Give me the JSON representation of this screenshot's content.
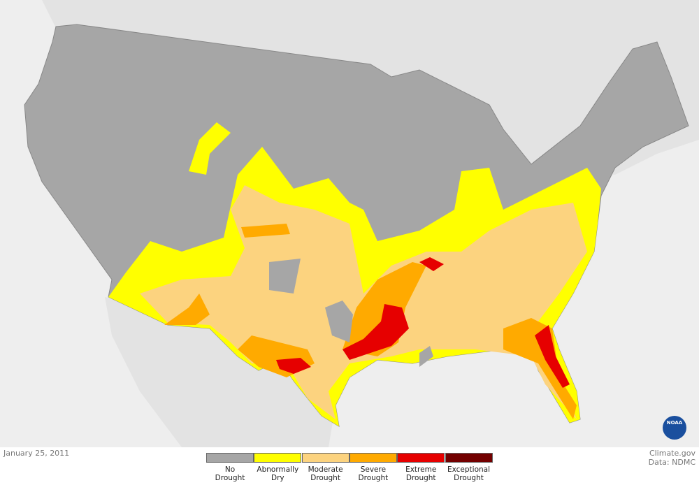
{
  "date": "January 25, 2011",
  "credit": "Climate.gov",
  "source": "Data: NDMC",
  "logo": "NOAA",
  "legend": [
    {
      "lines": [
        "No",
        "Drought"
      ],
      "color": "#a6a6a6"
    },
    {
      "lines": [
        "Abnormally",
        "Dry"
      ],
      "color": "#ffff00"
    },
    {
      "lines": [
        "Moderate",
        "Drought"
      ],
      "color": "#fcd37f"
    },
    {
      "lines": [
        "Severe",
        "Drought"
      ],
      "color": "#ffaa00"
    },
    {
      "lines": [
        "Extreme",
        "Drought"
      ],
      "color": "#e60000"
    },
    {
      "lines": [
        "Exceptional",
        "Drought"
      ],
      "color": "#730000"
    }
  ]
}
